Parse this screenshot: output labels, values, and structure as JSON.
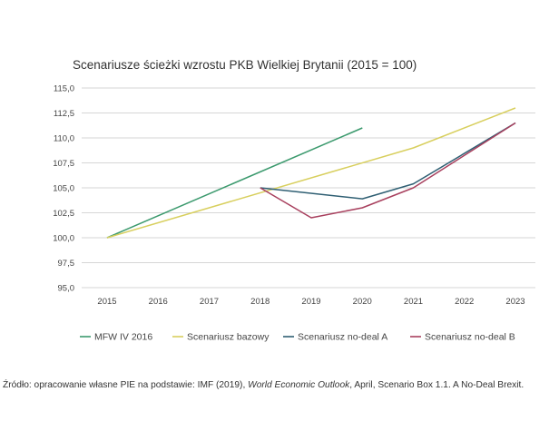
{
  "chart_data": {
    "type": "line",
    "title": "Scenariusze ścieżki wzrostu PKB Wielkiej Brytanii (2015 = 100)",
    "xlabel": "",
    "ylabel": "",
    "categories": [
      "2015",
      "2016",
      "2017",
      "2018",
      "2019",
      "2020",
      "2021",
      "2022",
      "2023"
    ],
    "y_ticks": [
      "95,0",
      "97,5",
      "100,0",
      "102,5",
      "105,0",
      "107,5",
      "110,0",
      "112,5",
      "115,0"
    ],
    "ylim": [
      95,
      115
    ],
    "grid": true,
    "legend_position": "bottom",
    "series": [
      {
        "name": "MFW IV 2016",
        "color": "#3c9a6e",
        "values": [
          100.0,
          null,
          null,
          null,
          null,
          111.0,
          null,
          null,
          null
        ]
      },
      {
        "name": "Scenariusz bazowy",
        "color": "#d8cf5e",
        "values": [
          100.0,
          null,
          null,
          null,
          null,
          null,
          109.0,
          null,
          113.0
        ]
      },
      {
        "name": "Scenariusz no-deal A",
        "color": "#2f5f73",
        "values": [
          null,
          null,
          null,
          105.0,
          null,
          103.9,
          105.4,
          null,
          111.5
        ]
      },
      {
        "name": "Scenariusz no-deal B",
        "color": "#a8405e",
        "values": [
          null,
          null,
          null,
          105.0,
          102.0,
          103.0,
          105.0,
          null,
          111.5
        ]
      }
    ]
  },
  "source": {
    "prefix": "Źródło: opracowanie własne PIE na podstawie: IMF (2019), ",
    "italic": "World Economic Outlook",
    "suffix": ", April, Scenario Box 1.1. A No-Deal Brexit."
  }
}
